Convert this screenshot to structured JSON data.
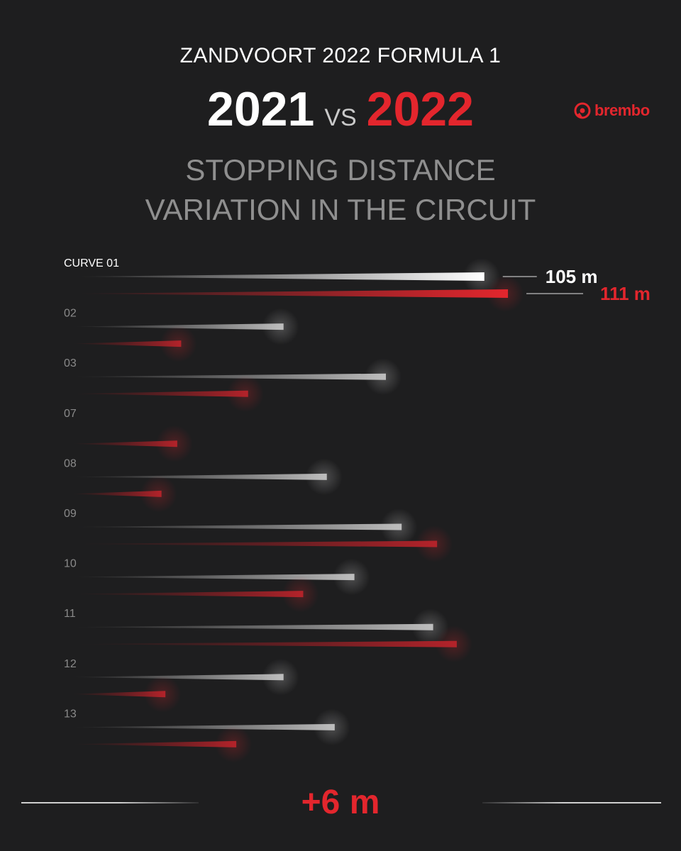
{
  "header": {
    "event": "ZANDVOORT 2022 FORMULA 1",
    "year_a": "2021",
    "vs": "VS",
    "year_b": "2022",
    "heading_line1": "STOPPING DISTANCE",
    "heading_line2": "VARIATION IN THE CIRCUIT"
  },
  "logo": {
    "text": "brembo",
    "icon": "brembo-caliper-icon",
    "color": "#e3262d"
  },
  "colors": {
    "background": "#1e1e1f",
    "series_2021": "#ffffff",
    "series_2022": "#e3262d"
  },
  "chart_data": {
    "type": "bar",
    "orientation": "horizontal",
    "categories": [
      "CURVE 01",
      "02",
      "03",
      "07",
      "08",
      "09",
      "10",
      "11",
      "12",
      "13"
    ],
    "series": [
      {
        "name": "2021",
        "values": [
          105,
          54,
          80,
          null,
          65,
          84,
          72,
          92,
          54,
          67
        ]
      },
      {
        "name": "2022",
        "values": [
          111,
          28,
          45,
          27,
          23,
          93,
          59,
          98,
          24,
          42
        ]
      }
    ],
    "value_labels": [
      {
        "category": "CURVE 01",
        "series": "2021",
        "text": "105 m"
      },
      {
        "category": "CURVE 01",
        "series": "2022",
        "text": "111 m"
      }
    ],
    "xlim": [
      0,
      111
    ],
    "legend": "none",
    "grid": false
  },
  "footer": {
    "difference": "+6 m"
  }
}
